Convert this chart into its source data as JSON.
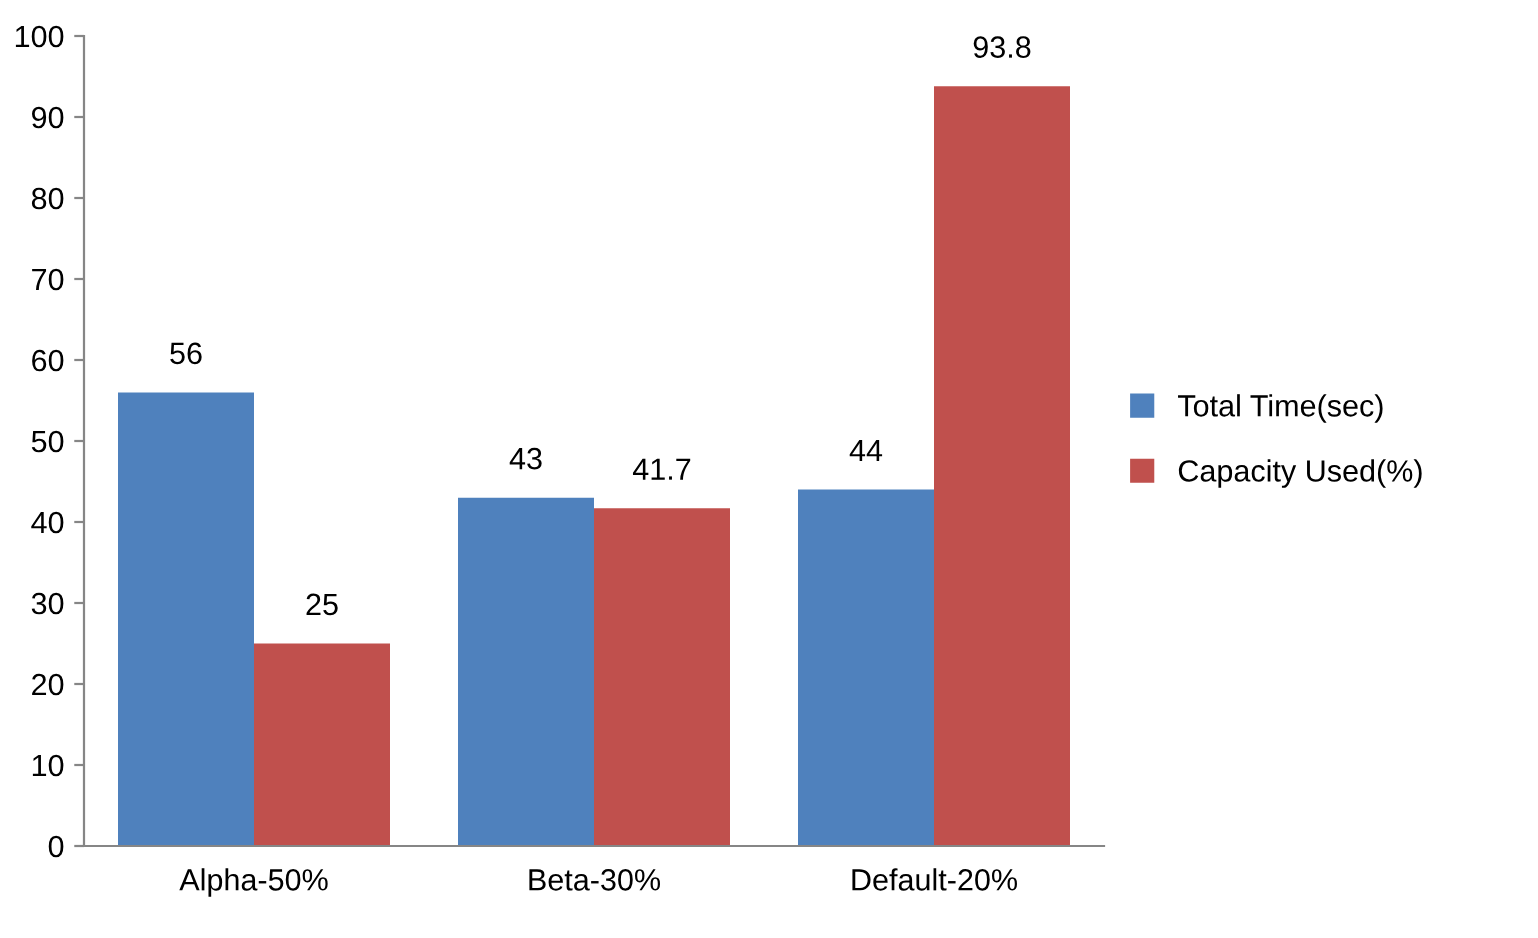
{
  "chart_data": {
    "type": "bar",
    "categories": [
      "Alpha-50%",
      "Beta-30%",
      "Default-20%"
    ],
    "series": [
      {
        "name": "Total Time(sec)",
        "color": "#4f81bd",
        "values": [
          56,
          43,
          44
        ]
      },
      {
        "name": "Capacity Used(%)",
        "color": "#c0504d",
        "values": [
          25,
          41.7,
          93.8
        ]
      }
    ],
    "ylim": [
      0,
      100
    ],
    "yticks": [
      0,
      10,
      20,
      30,
      40,
      50,
      60,
      70,
      80,
      90,
      100
    ],
    "grid": false,
    "legend": "right",
    "data_labels": true
  }
}
